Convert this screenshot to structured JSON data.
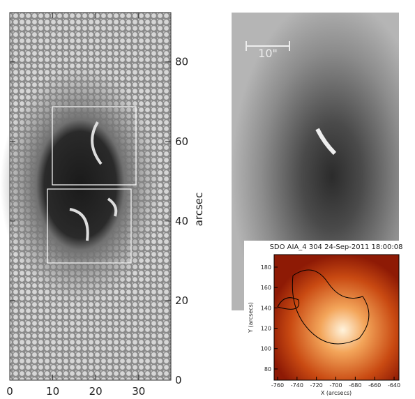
{
  "left_panel": {
    "xlim": [
      0,
      37.5
    ],
    "ylim": [
      0,
      92.4
    ],
    "xticks": [
      0,
      10,
      20,
      30
    ],
    "yticks": [
      0,
      20,
      40,
      60,
      80
    ],
    "ylabel": "arcsec"
  },
  "middle_panel": {
    "scale_label": "10\""
  },
  "inset": {
    "title": "SDO AIA_4 304 24-Sep-2011 18:00:08",
    "xlabel": "X (arcsecs)",
    "ylabel": "Y (arcsecs)",
    "xlim": [
      -763.6,
      -635
    ],
    "ylim": [
      69,
      192.3
    ],
    "xticks": [
      -760,
      -740,
      -720,
      -700,
      -680,
      -660,
      -640
    ],
    "yticks": [
      80,
      100,
      120,
      140,
      160,
      180
    ]
  }
}
